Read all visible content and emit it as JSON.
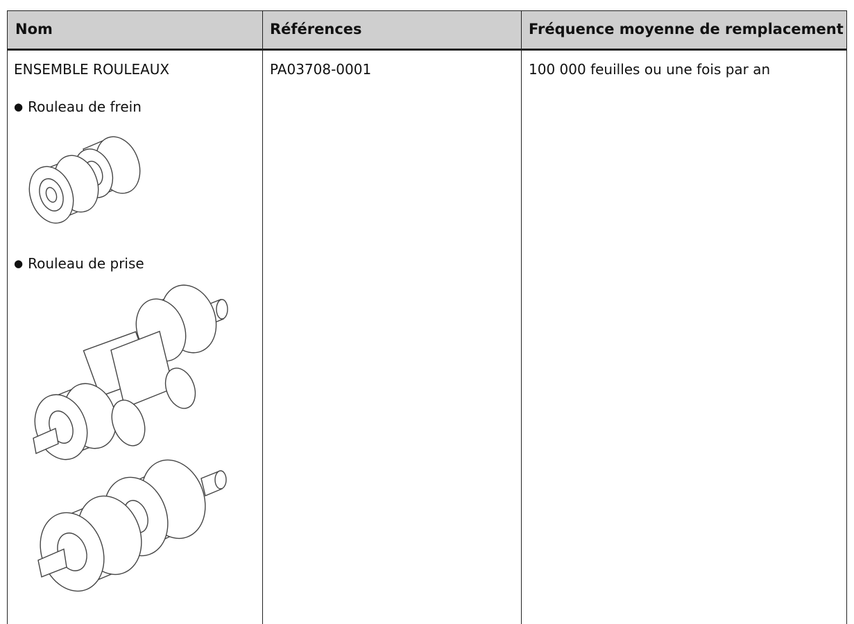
{
  "table": {
    "headers": [
      "Nom",
      "Références",
      "Fréquence moyenne de remplacement"
    ],
    "rows": [
      [
        "ENSEMBLE ROULEAUX",
        "PA03708-0001",
        "100 000 feuilles ou une fois par an"
      ]
    ],
    "items": [
      "Rouleau de frein",
      "Rouleau de prise"
    ]
  }
}
